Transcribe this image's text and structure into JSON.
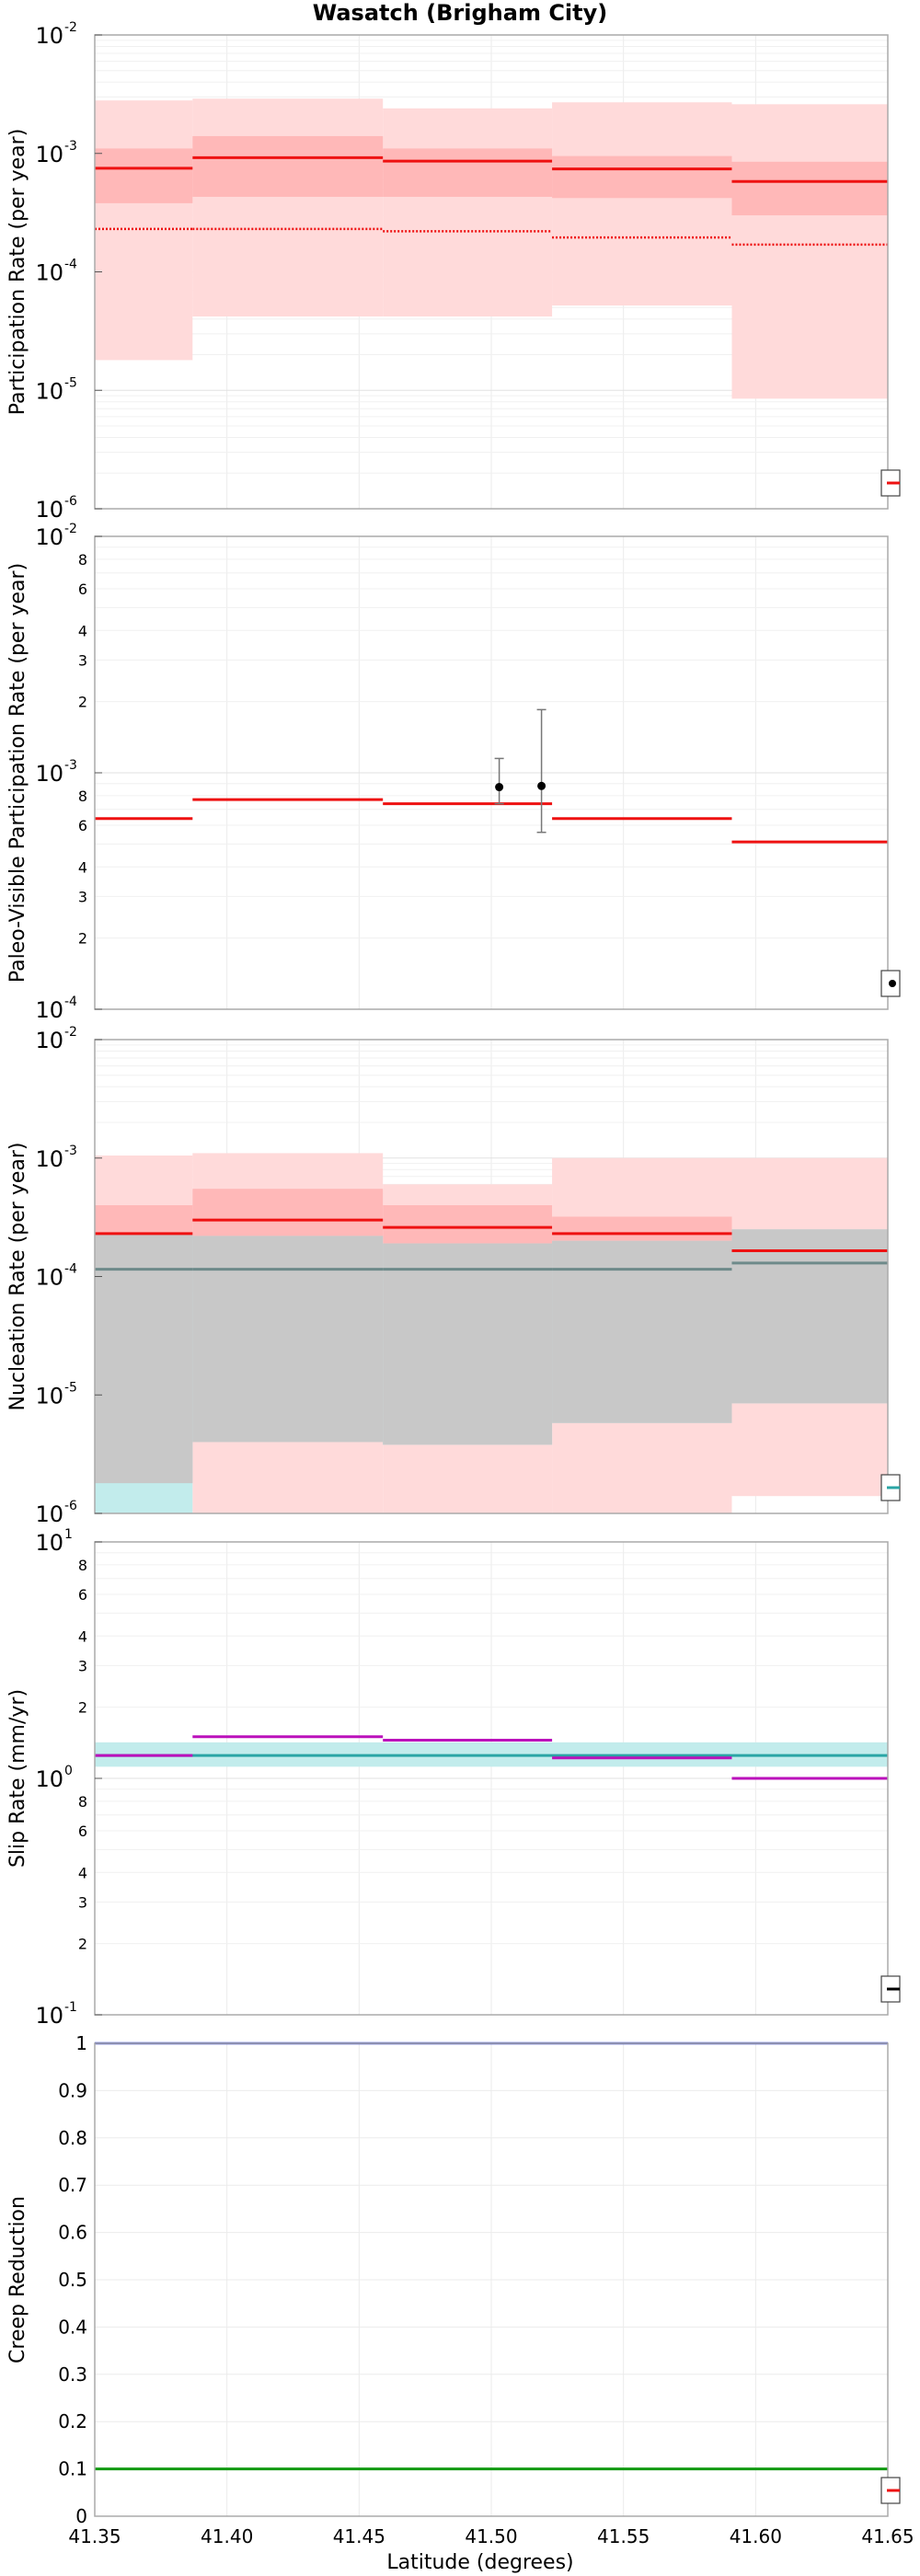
{
  "figure": {
    "title": "Wasatch (Brigham City)",
    "xlabel": "Latitude (degrees)",
    "xticks": [
      "41.35",
      "41.40",
      "41.45",
      "41.50",
      "41.55",
      "41.60",
      "41.65"
    ],
    "xlim": [
      41.35,
      41.65
    ]
  },
  "colors": {
    "rate_red": "#ee1111",
    "band_light": "#ffdada",
    "band_mid": "#ffb8b8",
    "cyan_band": "#c2ecec",
    "gray_overlap": "#c8c8c8",
    "slate_line": "#6e8a8a",
    "magenta": "#bb11bb",
    "teal_line": "#2aa5a5",
    "blue_line": "#3344cc",
    "green_line": "#119911",
    "frame": "#aaaaaa",
    "grid": "#ebebeb"
  },
  "chart_data": [
    {
      "type": "line",
      "name": "participation",
      "ylabel": "Participation Rate (per year)",
      "yscale": "log",
      "ylim": [
        1e-06,
        0.01
      ],
      "yticks": [
        {
          "base": "10",
          "exp": "-6"
        },
        {
          "base": "10",
          "exp": "-5"
        },
        {
          "base": "10",
          "exp": "-4"
        },
        {
          "base": "10",
          "exp": "-3"
        },
        {
          "base": "10",
          "exp": "-2"
        }
      ],
      "bins": [
        41.35,
        41.387,
        41.459,
        41.523,
        41.591,
        41.65
      ],
      "band_outer_low": [
        1.8e-05,
        4.2e-05,
        4.2e-05,
        5.2e-05,
        8.5e-06
      ],
      "band_outer_high": [
        0.0028,
        0.0029,
        0.0024,
        0.0027,
        0.0026
      ],
      "band_inner_low": [
        0.00038,
        0.00043,
        0.00043,
        0.00042,
        0.0003
      ],
      "band_inner_high": [
        0.0011,
        0.0014,
        0.0011,
        0.00095,
        0.00085
      ],
      "mean": [
        0.00075,
        0.00092,
        0.00086,
        0.00074,
        0.00058
      ],
      "mean_dotted": [
        0.00023,
        0.00023,
        0.00022,
        0.000195,
        0.00017
      ]
    },
    {
      "type": "line",
      "name": "paleo",
      "ylabel": "Paleo-Visible Participation Rate (per year)",
      "yscale": "log",
      "ylim": [
        0.0001,
        0.01
      ],
      "yticks": [
        {
          "base": "10",
          "exp": "-4"
        },
        {
          "base": "10",
          "exp": "-3"
        },
        {
          "base": "10",
          "exp": "-2"
        }
      ],
      "minor_labels": [
        "2",
        "3",
        "4",
        "6",
        "8"
      ],
      "bins": [
        41.35,
        41.387,
        41.459,
        41.523,
        41.591,
        41.65
      ],
      "mean": [
        0.00064,
        0.00077,
        0.00074,
        0.00064,
        0.00051
      ],
      "observations": [
        {
          "x": 41.503,
          "y": 0.00087,
          "low": 0.00074,
          "high": 0.00115
        },
        {
          "x": 41.519,
          "y": 0.00088,
          "low": 0.00056,
          "high": 0.00185
        }
      ]
    },
    {
      "type": "line",
      "name": "nucleation",
      "ylabel": "Nucleation Rate (per year)",
      "yscale": "log",
      "ylim": [
        1e-06,
        0.01
      ],
      "yticks": [
        {
          "base": "10",
          "exp": "-6"
        },
        {
          "base": "10",
          "exp": "-5"
        },
        {
          "base": "10",
          "exp": "-4"
        },
        {
          "base": "10",
          "exp": "-3"
        },
        {
          "base": "10",
          "exp": "-2"
        }
      ],
      "bins": [
        41.35,
        41.387,
        41.459,
        41.523,
        41.591,
        41.65
      ],
      "red_outer_low": [
        1.8e-06,
        1e-06,
        1e-06,
        1e-06,
        1.4e-06
      ],
      "red_outer_high": [
        0.00105,
        0.0011,
        0.0006,
        0.001,
        0.001
      ],
      "red_inner_low": [
        7.5e-05,
        9.5e-05,
        9.5e-05,
        0.000105,
        7.5e-05
      ],
      "red_inner_high": [
        0.0004,
        0.00055,
        0.0004,
        0.00032,
        0.00023
      ],
      "cyan_low": [
        1e-06,
        4e-06,
        3.8e-06,
        5.8e-06,
        8.5e-06
      ],
      "cyan_high": [
        0.00023,
        0.00022,
        0.00019,
        0.0002,
        0.00025
      ],
      "mean": [
        0.00023,
        0.0003,
        0.00026,
        0.00023,
        0.000165
      ],
      "mean_cyan": [
        0.000115,
        0.000115,
        0.000115,
        0.000115,
        0.00013
      ]
    },
    {
      "type": "line",
      "name": "slip",
      "ylabel": "Slip Rate (mm/yr)",
      "yscale": "log",
      "ylim": [
        0.1,
        10
      ],
      "yticks": [
        {
          "base": "10",
          "exp": "-1"
        },
        {
          "base": "10",
          "exp": "0"
        },
        {
          "base": "10",
          "exp": "1"
        }
      ],
      "minor_labels": [
        "2",
        "3",
        "4",
        "6",
        "8"
      ],
      "bins": [
        41.35,
        41.387,
        41.459,
        41.523,
        41.591,
        41.65
      ],
      "target_low": 1.12,
      "target_high": 1.42,
      "target": 1.25,
      "modeled": [
        1.25,
        1.5,
        1.45,
        1.22,
        1.0
      ]
    },
    {
      "type": "line",
      "name": "creep",
      "ylabel": "Creep Reduction",
      "yscale": "linear",
      "ylim": [
        0,
        1
      ],
      "yticks": [
        "0",
        "0.1",
        "0.2",
        "0.3",
        "0.4",
        "0.5",
        "0.6",
        "0.7",
        "0.8",
        "0.9",
        "1"
      ],
      "aseismicity": 1.0,
      "coupling": 0.1
    }
  ]
}
